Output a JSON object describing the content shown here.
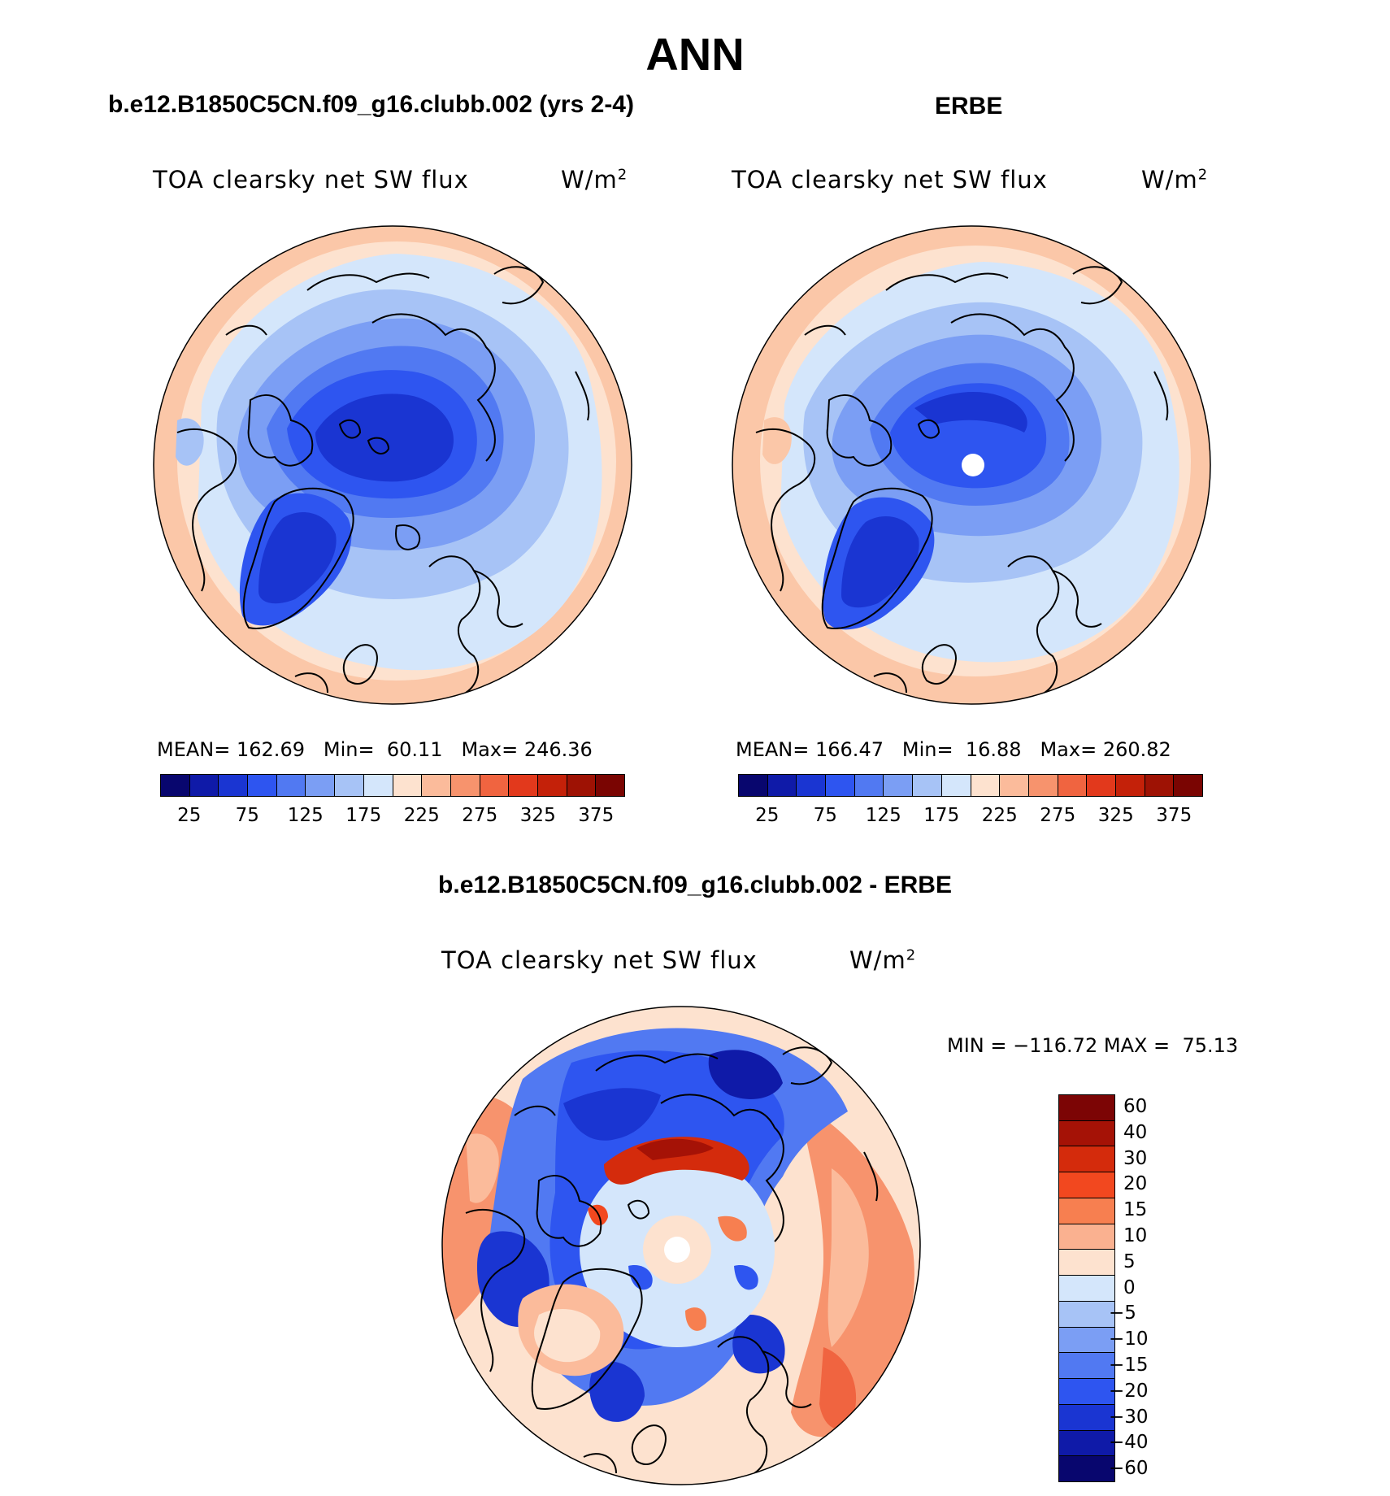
{
  "figure": {
    "season": "ANN"
  },
  "panels": [
    {
      "case": "b.e12.B1850C5CN.f09_g16.clubb.002 (yrs 2-4)",
      "variable": "TOA clearsky net SW flux",
      "units_base": "W/m",
      "units_exp": "2",
      "stats": {
        "mean_label": "MEAN=",
        "mean": "162.69",
        "min_label": "Min=",
        "min": "60.11",
        "max_label": "Max=",
        "max": "246.36"
      }
    },
    {
      "case": "ERBE",
      "variable": "TOA clearsky net SW flux",
      "units_base": "W/m",
      "units_exp": "2",
      "stats": {
        "mean_label": "MEAN=",
        "mean": "166.47",
        "min_label": "Min=",
        "min": "16.88",
        "max_label": "Max=",
        "max": "260.82"
      }
    },
    {
      "case": "b.e12.B1850C5CN.f09_g16.clubb.002 - ERBE",
      "variable": "TOA clearsky net SW flux",
      "units_base": "W/m",
      "units_exp": "2",
      "stats": {
        "min_label": "MIN =",
        "min": "−116.72",
        "max_label": "MAX =",
        "max": "75.13"
      }
    }
  ],
  "abs_colorbar": {
    "colors": [
      "#08066e",
      "#0f1aa8",
      "#1a35d2",
      "#2e55f0",
      "#5179f2",
      "#7b9ef4",
      "#a7c3f6",
      "#d4e6fb",
      "#fde2cf",
      "#fbbb9b",
      "#f7936d",
      "#f06440",
      "#e2391c",
      "#c42109",
      "#9e1204",
      "#7a0502"
    ],
    "ticks": [
      "25",
      "75",
      "125",
      "175",
      "225",
      "275",
      "325",
      "375"
    ]
  },
  "diff_colorbar": {
    "colors": [
      "#7c0505",
      "#a51206",
      "#d42b0c",
      "#f2481f",
      "#f77f50",
      "#fab190",
      "#fde2cf",
      "#d4e6fb",
      "#a7c3f6",
      "#7b9ef4",
      "#5179f2",
      "#2e55f0",
      "#1a35d2",
      "#0f1aa8",
      "#08066e"
    ],
    "ticks": [
      "60",
      "40",
      "30",
      "20",
      "15",
      "10",
      "5",
      "0",
      "−5",
      "−10",
      "−15",
      "−20",
      "−30",
      "−40",
      "−60"
    ]
  }
}
